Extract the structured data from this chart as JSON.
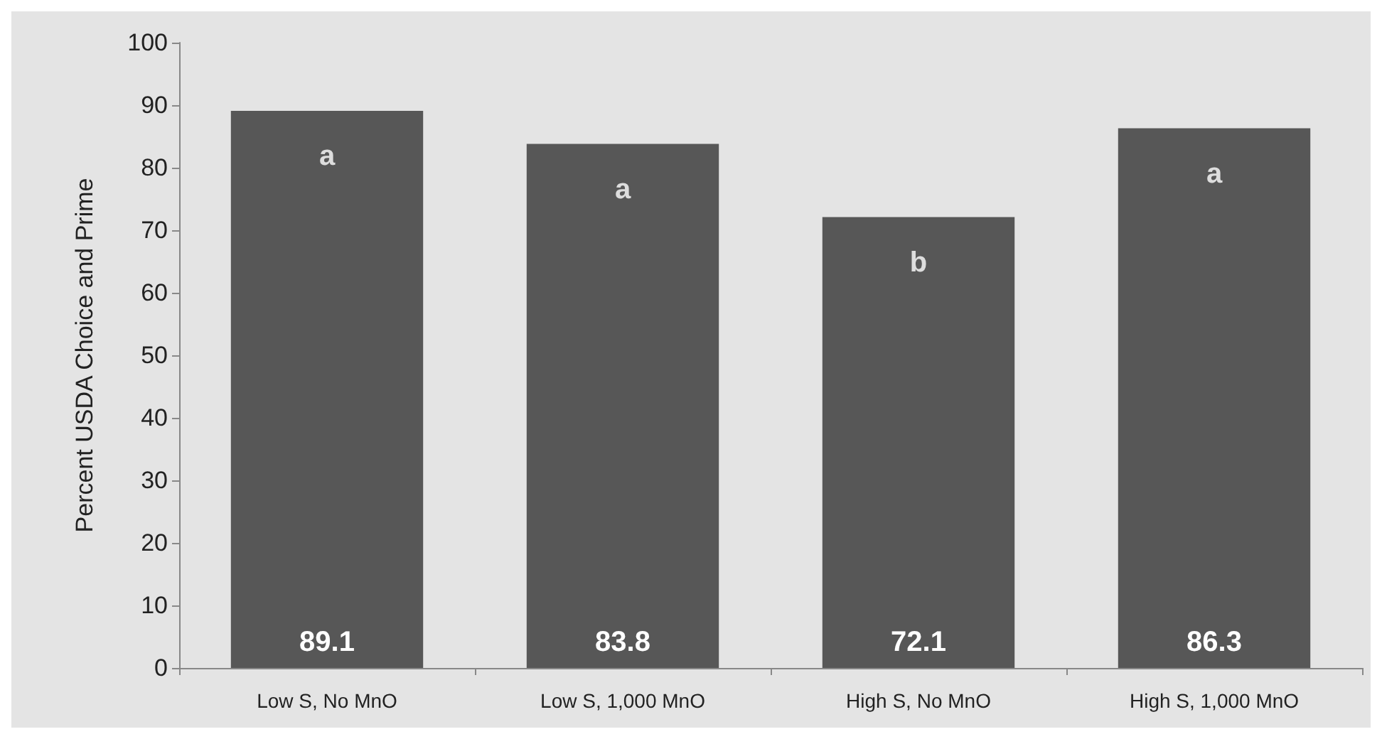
{
  "chart_data": {
    "type": "bar",
    "ylabel": "Percent USDA Choice and Prime",
    "categories": [
      "Low S, No MnO",
      "Low S, 1,000 MnO",
      "High S, No MnO",
      "High S, 1,000 MnO"
    ],
    "values": [
      89.1,
      83.8,
      72.1,
      86.3
    ],
    "color": "#575757",
    "ylim": [
      0,
      100
    ],
    "yticks": [
      0,
      10,
      20,
      30,
      40,
      50,
      60,
      70,
      80,
      90,
      100
    ],
    "grid": false,
    "data_labels": true,
    "annotations": [
      {
        "text": "a",
        "x": "Low S, No MnO",
        "y": 89.1
      },
      {
        "text": "a",
        "x": "Low S, 1,000 MnO",
        "y": 83.8
      },
      {
        "text": "b",
        "x": "High S, No MnO",
        "y": 72.1
      },
      {
        "text": "a",
        "x": "High S, 1,000 MnO",
        "y": 86.3
      }
    ]
  }
}
